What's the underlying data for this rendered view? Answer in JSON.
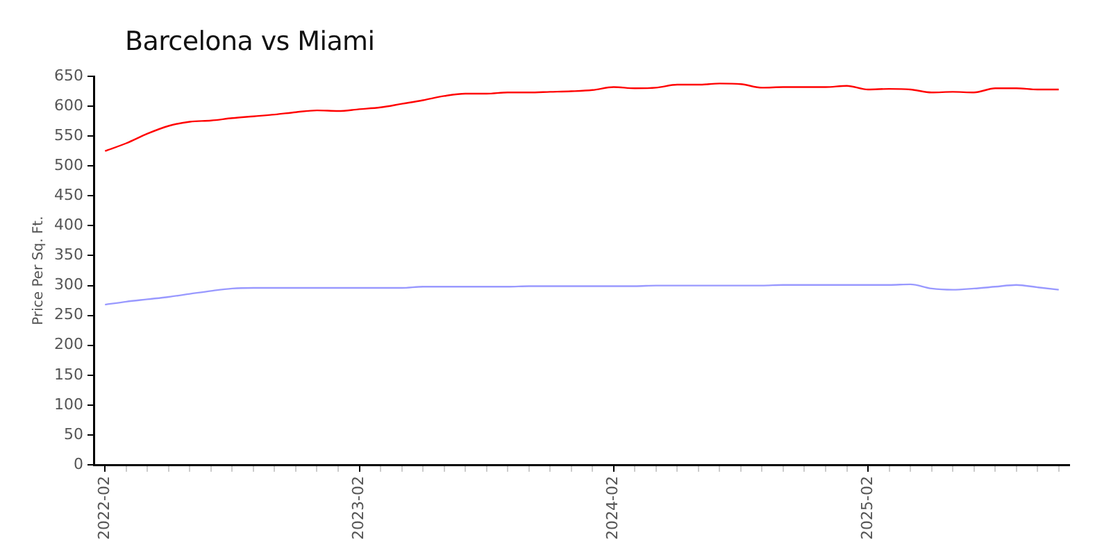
{
  "chart_data": {
    "type": "line",
    "title": "Barcelona vs Miami",
    "ylabel": "Price Per Sq. Ft.",
    "categories": [
      "2022-02",
      null,
      null,
      null,
      null,
      null,
      null,
      null,
      null,
      null,
      null,
      null,
      "2023-02",
      null,
      null,
      null,
      null,
      null,
      null,
      null,
      null,
      null,
      null,
      null,
      "2024-02",
      null,
      null,
      null,
      null,
      null,
      null,
      null,
      null,
      null,
      null,
      null,
      "2025-02",
      null,
      null,
      null,
      null,
      null,
      null,
      null,
      null,
      null
    ],
    "series": [
      {
        "color": "#ff0000",
        "values": [
          525,
          538,
          554,
          567,
          574,
          576,
          580,
          583,
          586,
          590,
          593,
          592,
          595,
          598,
          604,
          610,
          617,
          621,
          621,
          623,
          623,
          624,
          625,
          627,
          632,
          630,
          631,
          636,
          636,
          638,
          637,
          631,
          632,
          632,
          632,
          634,
          628,
          629,
          628,
          623,
          624,
          623,
          630,
          630,
          628,
          628
        ]
      },
      {
        "color": "#9999ff",
        "values": [
          268,
          273,
          277,
          281,
          286,
          291,
          295,
          296,
          296,
          296,
          296,
          296,
          296,
          296,
          296,
          298,
          298,
          298,
          298,
          298,
          299,
          299,
          299,
          299,
          299,
          299,
          300,
          300,
          300,
          300,
          300,
          300,
          301,
          301,
          301,
          301,
          301,
          301,
          302,
          295,
          293,
          295,
          298,
          301,
          297,
          293
        ]
      }
    ],
    "ylim": [
      0,
      650
    ],
    "yticks": [
      0,
      50,
      100,
      150,
      200,
      250,
      300,
      350,
      400,
      450,
      500,
      550,
      600,
      650
    ],
    "grid": false,
    "marker": "none"
  }
}
